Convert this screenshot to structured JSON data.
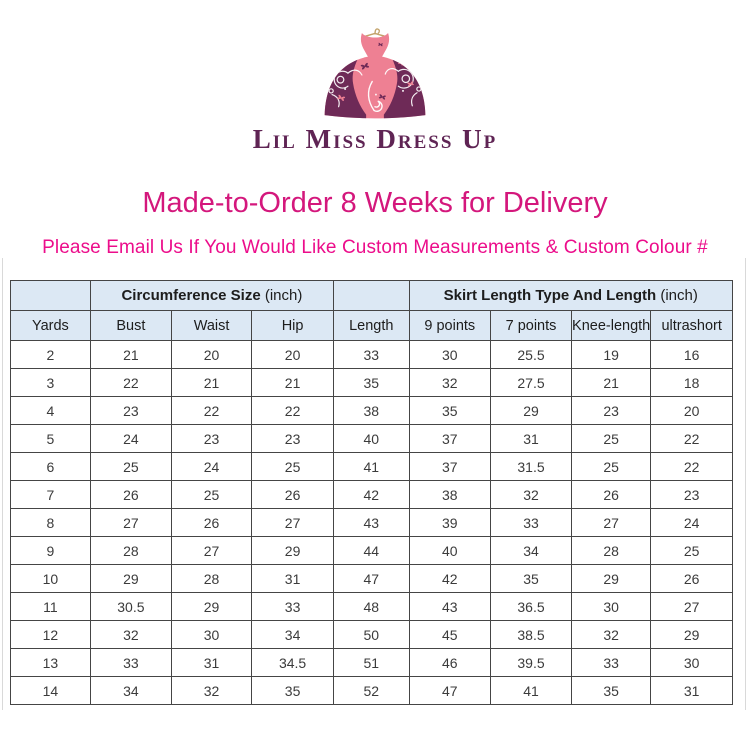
{
  "colors": {
    "pink_dress": "#ee8093",
    "plum": "#6e2a57",
    "gold": "#c2a269",
    "brand_text": "#5f2454",
    "title_pink": "#d4177c",
    "subtitle_pink": "#ec0d8b",
    "header_bg": "#dce8f4",
    "border": "#454545",
    "cell_text": "#3b3b3b",
    "head_text": "#1d1d1d",
    "frame_line": "#d9d9d9"
  },
  "logo": {
    "brand": "Lil Miss Dress Up",
    "icon": "dress-on-hanger-icon"
  },
  "headings": {
    "title": "Made-to-Order 8 Weeks for Delivery",
    "subtitle": "Please Email Us If You Would Like Custom Measurements & Custom Colour #"
  },
  "table": {
    "group_headers": [
      {
        "bold": "",
        "unit": "",
        "span": 1
      },
      {
        "bold": "Circumference Size",
        "unit": " (inch)",
        "span": 3
      },
      {
        "bold": "",
        "unit": "",
        "span": 1
      },
      {
        "bold": "Skirt Length Type And Length",
        "unit": " (inch)",
        "span": 4
      }
    ],
    "columns": [
      "Yards",
      "Bust",
      "Waist",
      "Hip",
      "Length",
      "9 points",
      "7 points",
      "Knee-length",
      "ultrashort"
    ],
    "rows": [
      [
        "2",
        "21",
        "20",
        "20",
        "33",
        "30",
        "25.5",
        "19",
        "16"
      ],
      [
        "3",
        "22",
        "21",
        "21",
        "35",
        "32",
        "27.5",
        "21",
        "18"
      ],
      [
        "4",
        "23",
        "22",
        "22",
        "38",
        "35",
        "29",
        "23",
        "20"
      ],
      [
        "5",
        "24",
        "23",
        "23",
        "40",
        "37",
        "31",
        "25",
        "22"
      ],
      [
        "6",
        "25",
        "24",
        "25",
        "41",
        "37",
        "31.5",
        "25",
        "22"
      ],
      [
        "7",
        "26",
        "25",
        "26",
        "42",
        "38",
        "32",
        "26",
        "23"
      ],
      [
        "8",
        "27",
        "26",
        "27",
        "43",
        "39",
        "33",
        "27",
        "24"
      ],
      [
        "9",
        "28",
        "27",
        "29",
        "44",
        "40",
        "34",
        "28",
        "25"
      ],
      [
        "10",
        "29",
        "28",
        "31",
        "47",
        "42",
        "35",
        "29",
        "26"
      ],
      [
        "11",
        "30.5",
        "29",
        "33",
        "48",
        "43",
        "36.5",
        "30",
        "27"
      ],
      [
        "12",
        "32",
        "30",
        "34",
        "50",
        "45",
        "38.5",
        "32",
        "29"
      ],
      [
        "13",
        "33",
        "31",
        "34.5",
        "51",
        "46",
        "39.5",
        "33",
        "30"
      ],
      [
        "14",
        "34",
        "32",
        "35",
        "52",
        "47",
        "41",
        "35",
        "31"
      ]
    ]
  }
}
